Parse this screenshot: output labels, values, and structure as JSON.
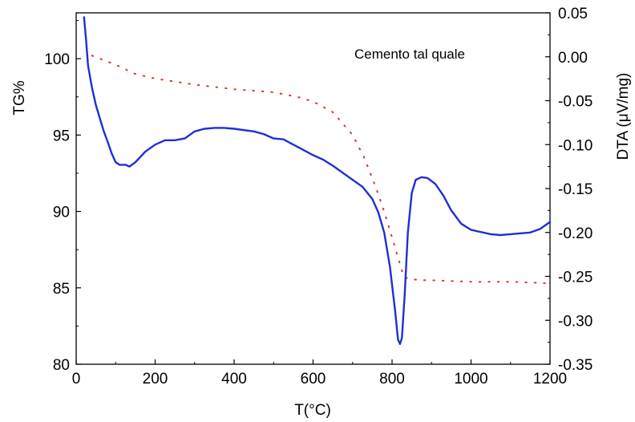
{
  "chart_data": {
    "type": "line",
    "title": "",
    "annotation": "Cemento tal quale",
    "xlabel": "T(°C)",
    "ylabel_left": "TG%",
    "ylabel_right": "DTA (μV/mg)",
    "xlim": [
      0,
      1200
    ],
    "ylim_left": [
      80,
      103
    ],
    "ylim_right": [
      -0.35,
      0.05
    ],
    "x_ticks": [
      "0",
      "200",
      "400",
      "600",
      "800",
      "1000",
      "1200"
    ],
    "y_left_ticks": [
      "80",
      "85",
      "90",
      "95",
      "100"
    ],
    "y_right_ticks": [
      "-0.35",
      "-0.30",
      "-0.25",
      "-0.20",
      "-0.15",
      "-0.10",
      "-0.05",
      "0.00",
      "0.05"
    ],
    "grid": false,
    "colors": {
      "tg": "#e0332a",
      "dta": "#1f2fd6",
      "axis": "#000000"
    },
    "series": [
      {
        "key": "tg",
        "axis": "left",
        "style": "dotted",
        "x": [
          40,
          60,
          100,
          150,
          200,
          300,
          400,
          500,
          560,
          600,
          650,
          700,
          730,
          760,
          780,
          800,
          815,
          830,
          845,
          870,
          900,
          1000,
          1100,
          1200
        ],
        "y": [
          100.2,
          100.0,
          99.6,
          99.0,
          98.7,
          98.3,
          98.0,
          97.8,
          97.5,
          97.2,
          96.5,
          95.0,
          93.5,
          91.5,
          90.0,
          88.3,
          87.0,
          85.7,
          85.6,
          85.5,
          85.5,
          85.4,
          85.4,
          85.3
        ]
      },
      {
        "key": "dta",
        "axis": "right",
        "style": "solid",
        "x": [
          20,
          25,
          30,
          40,
          50,
          60,
          70,
          80,
          90,
          100,
          110,
          125,
          135,
          150,
          175,
          200,
          225,
          250,
          275,
          300,
          325,
          350,
          375,
          400,
          450,
          475,
          500,
          525,
          550,
          575,
          600,
          625,
          650,
          675,
          700,
          725,
          750,
          765,
          780,
          795,
          808,
          815,
          820,
          825,
          832,
          840,
          850,
          860,
          875,
          890,
          910,
          930,
          950,
          975,
          1000,
          1050,
          1075,
          1100,
          1150,
          1175,
          1200
        ],
        "y": [
          0.045,
          0.02,
          -0.01,
          -0.035,
          -0.055,
          -0.07,
          -0.085,
          -0.097,
          -0.11,
          -0.12,
          -0.123,
          -0.123,
          -0.125,
          -0.12,
          -0.108,
          -0.1,
          -0.095,
          -0.095,
          -0.093,
          -0.085,
          -0.082,
          -0.081,
          -0.081,
          -0.082,
          -0.085,
          -0.088,
          -0.093,
          -0.094,
          -0.1,
          -0.106,
          -0.112,
          -0.117,
          -0.124,
          -0.132,
          -0.14,
          -0.148,
          -0.162,
          -0.177,
          -0.2,
          -0.24,
          -0.29,
          -0.322,
          -0.327,
          -0.32,
          -0.27,
          -0.2,
          -0.155,
          -0.14,
          -0.137,
          -0.138,
          -0.145,
          -0.158,
          -0.175,
          -0.19,
          -0.197,
          -0.202,
          -0.203,
          -0.202,
          -0.2,
          -0.196,
          -0.188
        ]
      }
    ]
  }
}
